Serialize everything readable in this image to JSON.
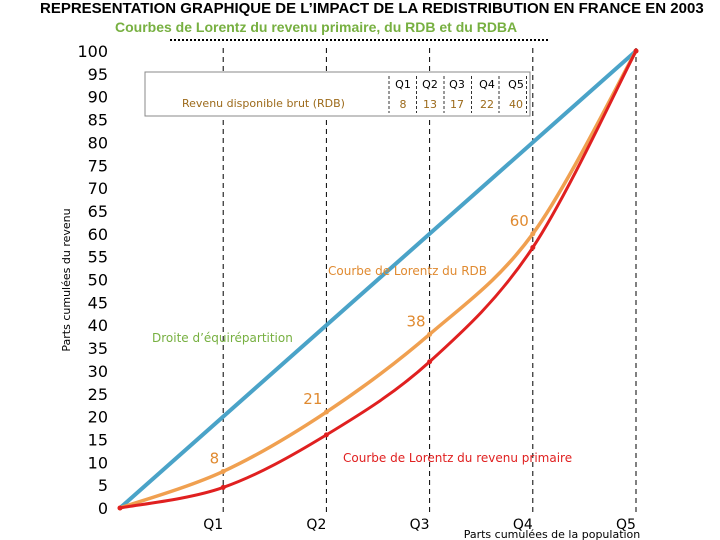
{
  "chart_data": {
    "type": "line",
    "title": "REPRESENTATION GRAPHIQUE DE L’IMPACT DE LA REDISTRIBUTION EN FRANCE EN 2003",
    "subtitle": "Courbes de Lorentz du revenu primaire, du RDB et du RDBA",
    "ylabel": "Parts cumulées du revenu",
    "xlabel": "Parts cumulées de la population",
    "ylim": [
      0,
      100
    ],
    "yticks": [
      "0",
      "5",
      "10",
      "15",
      "20",
      "25",
      "30",
      "35",
      "40",
      "45",
      "50",
      "55",
      "60",
      "65",
      "70",
      "75",
      "80",
      "85",
      "90",
      "95",
      "100"
    ],
    "x": [
      0,
      1,
      2,
      3,
      4,
      5
    ],
    "xtick_labels": [
      "Q1",
      "Q2",
      "Q3",
      "Q4",
      "Q5"
    ],
    "grid": "vertical dashed at quintiles",
    "colors": {
      "equality": "#4aa3c8",
      "rdb": "#f0a050",
      "primary": "#e02020",
      "green": "#77b041"
    },
    "series": [
      {
        "key": "equality",
        "values": [
          0,
          20,
          40,
          60,
          80,
          100
        ],
        "color": "#4aa3c8"
      },
      {
        "key": "rdb",
        "values": [
          0,
          8,
          21,
          38,
          60,
          100
        ],
        "color": "#f0a050"
      },
      {
        "key": "primary",
        "values": [
          0,
          4.5,
          16,
          32,
          57,
          100
        ],
        "color": "#e02020"
      }
    ],
    "data_labels": [
      "8",
      "21",
      "38",
      "60"
    ],
    "annotations": {
      "equality": "Droite d’équirépartition",
      "rdb": "Courbe de Lorentz du RDB",
      "primary": "Courbe de Lorentz du revenu primaire"
    },
    "table": {
      "row_label": "Revenu disponible brut (RDB)",
      "headers": [
        "Q1",
        "Q2",
        "Q3",
        "Q4",
        "Q5"
      ],
      "values": [
        "8",
        "13",
        "17",
        "22",
        "40"
      ]
    }
  }
}
